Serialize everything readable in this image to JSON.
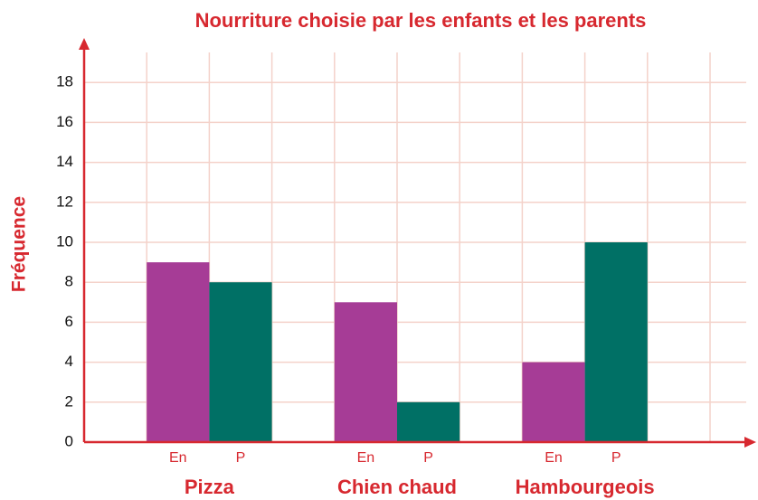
{
  "chart_data": {
    "type": "bar",
    "title": "Nourriture choisie par les enfants et les parents",
    "y_label": "Fréquence",
    "categories": [
      "Pizza",
      "Chien chaud",
      "Hambourgeois"
    ],
    "series": [
      {
        "name": "En",
        "color": "#a63c96",
        "values": [
          9,
          7,
          4
        ]
      },
      {
        "name": "P",
        "color": "#007065",
        "values": [
          8,
          2,
          10
        ]
      }
    ],
    "ylim": [
      0,
      20
    ],
    "yticks": [
      0,
      2,
      4,
      6,
      8,
      10,
      12,
      14,
      16,
      18
    ],
    "grid": true
  }
}
